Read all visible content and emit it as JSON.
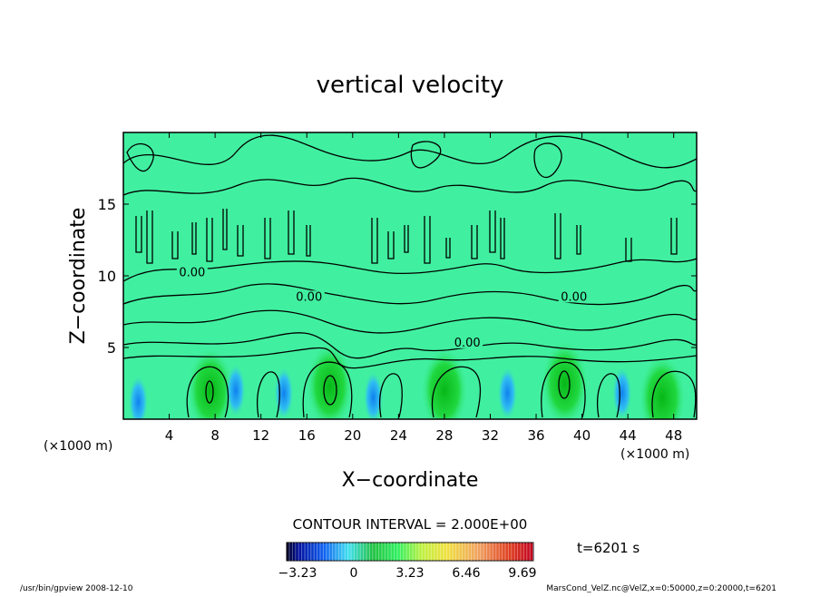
{
  "chart_data": {
    "type": "heatmap",
    "title": "vertical velocity",
    "xlabel": "X−coordinate",
    "ylabel": "Z−coordinate",
    "x_unit": "(×1000 m)",
    "y_unit": "(×1000 m)",
    "xlim": [
      0,
      50
    ],
    "ylim": [
      0,
      20
    ],
    "x_ticks": [
      4,
      8,
      12,
      16,
      20,
      24,
      28,
      32,
      36,
      40,
      44,
      48
    ],
    "y_ticks": [
      5,
      10,
      15
    ],
    "contour_interval_text": "CONTOUR INTERVAL = 2.000E+00",
    "contour_labels": [
      {
        "text": "0.00",
        "x": 6.0,
        "z": 10.1
      },
      {
        "text": "0.00",
        "x": 16.2,
        "z": 8.4
      },
      {
        "text": "0.00",
        "x": 30.0,
        "z": 5.2
      },
      {
        "text": "0.00",
        "x": 39.3,
        "z": 8.4
      }
    ],
    "colorbar": {
      "min": -3.23,
      "max": 9.69,
      "tick_values": [
        -3.23,
        0,
        3.23,
        6.46,
        9.69
      ],
      "tick_labels": [
        "−3.23",
        "0",
        "3.23",
        "6.46",
        "9.69"
      ]
    },
    "time_label": "t=6201 s",
    "updrafts": [
      {
        "x": 7.6,
        "z": 2.0
      },
      {
        "x": 18.0,
        "z": 2.3
      },
      {
        "x": 28.0,
        "z": 2.0
      },
      {
        "x": 38.5,
        "z": 2.5
      },
      {
        "x": 47.0,
        "z": 1.5
      }
    ],
    "downdrafts": [
      {
        "x": 1.3,
        "z": 1.2
      },
      {
        "x": 9.8,
        "z": 2.0
      },
      {
        "x": 14.0,
        "z": 1.8
      },
      {
        "x": 21.8,
        "z": 1.5
      },
      {
        "x": 33.5,
        "z": 1.8
      },
      {
        "x": 43.5,
        "z": 1.8
      }
    ]
  },
  "footer": {
    "left": "/usr/bin/gpview   2008-12-10",
    "right": "MarsCond_VelZ.nc@VelZ,x=0:50000,z=0:20000,t=6201"
  },
  "colors": {
    "background": "#40F0A0",
    "updraft": "#10C830",
    "downdraft": "#1090F0",
    "contour": "#000000"
  }
}
